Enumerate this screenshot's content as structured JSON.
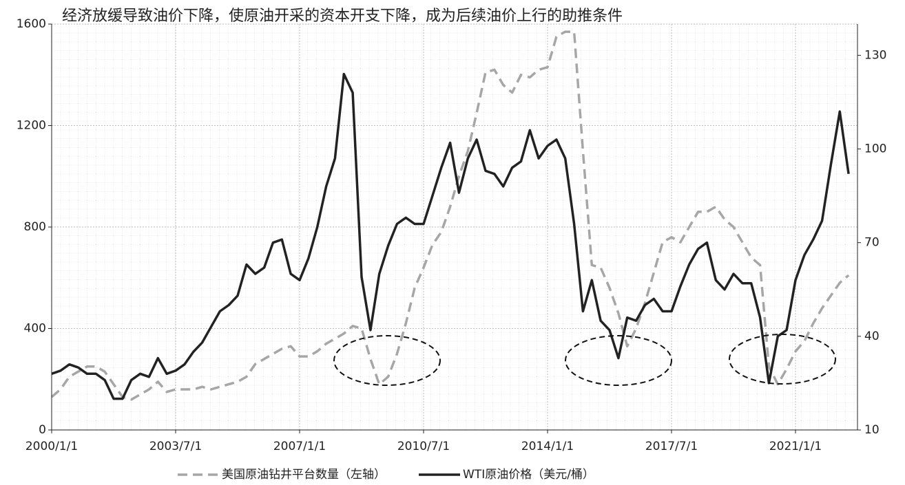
{
  "chart_data": {
    "type": "line",
    "title": "经济放缓导致油价下降，使原油开采的资本开支下降，成为后续油价上行的助推条件",
    "x": [
      "2000/1/1",
      "2000/4/1",
      "2000/7/1",
      "2000/10/1",
      "2001/1/1",
      "2001/4/1",
      "2001/7/1",
      "2001/10/1",
      "2002/1/1",
      "2002/4/1",
      "2002/7/1",
      "2002/10/1",
      "2003/1/1",
      "2003/4/1",
      "2003/7/1",
      "2003/10/1",
      "2004/1/1",
      "2004/4/1",
      "2004/7/1",
      "2004/10/1",
      "2005/1/1",
      "2005/4/1",
      "2005/7/1",
      "2005/10/1",
      "2006/1/1",
      "2006/4/1",
      "2006/7/1",
      "2006/10/1",
      "2007/1/1",
      "2007/4/1",
      "2007/7/1",
      "2007/10/1",
      "2008/1/1",
      "2008/4/1",
      "2008/7/1",
      "2008/10/1",
      "2009/1/1",
      "2009/4/1",
      "2009/7/1",
      "2009/10/1",
      "2010/1/1",
      "2010/4/1",
      "2010/7/1",
      "2010/10/1",
      "2011/1/1",
      "2011/4/1",
      "2011/7/1",
      "2011/10/1",
      "2012/1/1",
      "2012/4/1",
      "2012/7/1",
      "2012/10/1",
      "2013/1/1",
      "2013/4/1",
      "2013/7/1",
      "2013/10/1",
      "2014/1/1",
      "2014/4/1",
      "2014/7/1",
      "2014/10/1",
      "2015/1/1",
      "2015/4/1",
      "2015/7/1",
      "2015/10/1",
      "2016/1/1",
      "2016/4/1",
      "2016/7/1",
      "2016/10/1",
      "2017/1/1",
      "2017/4/1",
      "2017/7/1",
      "2017/10/1",
      "2018/1/1",
      "2018/4/1",
      "2018/7/1",
      "2018/10/1",
      "2019/1/1",
      "2019/4/1",
      "2019/7/1",
      "2019/10/1",
      "2020/1/1",
      "2020/4/1",
      "2020/7/1",
      "2020/10/1",
      "2021/1/1",
      "2021/4/1",
      "2021/7/1",
      "2021/10/1",
      "2022/1/1",
      "2022/4/1",
      "2022/7/1"
    ],
    "series": [
      {
        "name": "美国原油钻井平台数量（左轴）",
        "color": "#a6a6a6",
        "dash": true,
        "values": [
          130,
          160,
          210,
          230,
          250,
          250,
          230,
          180,
          130,
          120,
          140,
          160,
          190,
          150,
          160,
          160,
          160,
          170,
          160,
          170,
          180,
          190,
          210,
          260,
          280,
          300,
          320,
          330,
          290,
          290,
          310,
          340,
          360,
          380,
          410,
          400,
          280,
          180,
          210,
          300,
          420,
          560,
          640,
          730,
          780,
          880,
          1000,
          1100,
          1250,
          1410,
          1420,
          1360,
          1330,
          1400,
          1390,
          1420,
          1430,
          1550,
          1570,
          1570,
          1100,
          650,
          640,
          560,
          460,
          330,
          400,
          500,
          620,
          740,
          760,
          740,
          800,
          860,
          860,
          880,
          830,
          800,
          740,
          680,
          650,
          250,
          180,
          240,
          310,
          350,
          420,
          480,
          530,
          580,
          610
        ]
      },
      {
        "name": "WTI原油价格（美元/桶）",
        "color": "#222222",
        "dash": false,
        "axis": "y2",
        "values": [
          28,
          29,
          31,
          30,
          28,
          28,
          26,
          20,
          20,
          26,
          28,
          27,
          33,
          28,
          29,
          31,
          35,
          38,
          43,
          48,
          50,
          53,
          63,
          60,
          62,
          70,
          71,
          60,
          58,
          65,
          75,
          88,
          97,
          124,
          118,
          59,
          42,
          60,
          69,
          76,
          78,
          76,
          76,
          85,
          94,
          102,
          86,
          97,
          103,
          93,
          92,
          88,
          94,
          96,
          106,
          97,
          101,
          103,
          97,
          76,
          48,
          58,
          45,
          42,
          33,
          46,
          45,
          50,
          52,
          48,
          48,
          56,
          63,
          68,
          70,
          58,
          55,
          60,
          57,
          57,
          46,
          25,
          40,
          42,
          58,
          66,
          71,
          77,
          95,
          112,
          92
        ]
      }
    ],
    "xlim": [
      "2000/1/1",
      "2022/10/1"
    ],
    "xticks": [
      "2000/1/1",
      "2003/7/1",
      "2007/1/1",
      "2010/7/1",
      "2014/1/1",
      "2017/7/1",
      "2021/1/1"
    ],
    "ylim": [
      0,
      1600
    ],
    "yticks": [
      0,
      400,
      800,
      1200,
      1600
    ],
    "y2lim": [
      10,
      140
    ],
    "y2ticks": [
      10,
      40,
      70,
      100,
      130
    ],
    "grid": true
  }
}
